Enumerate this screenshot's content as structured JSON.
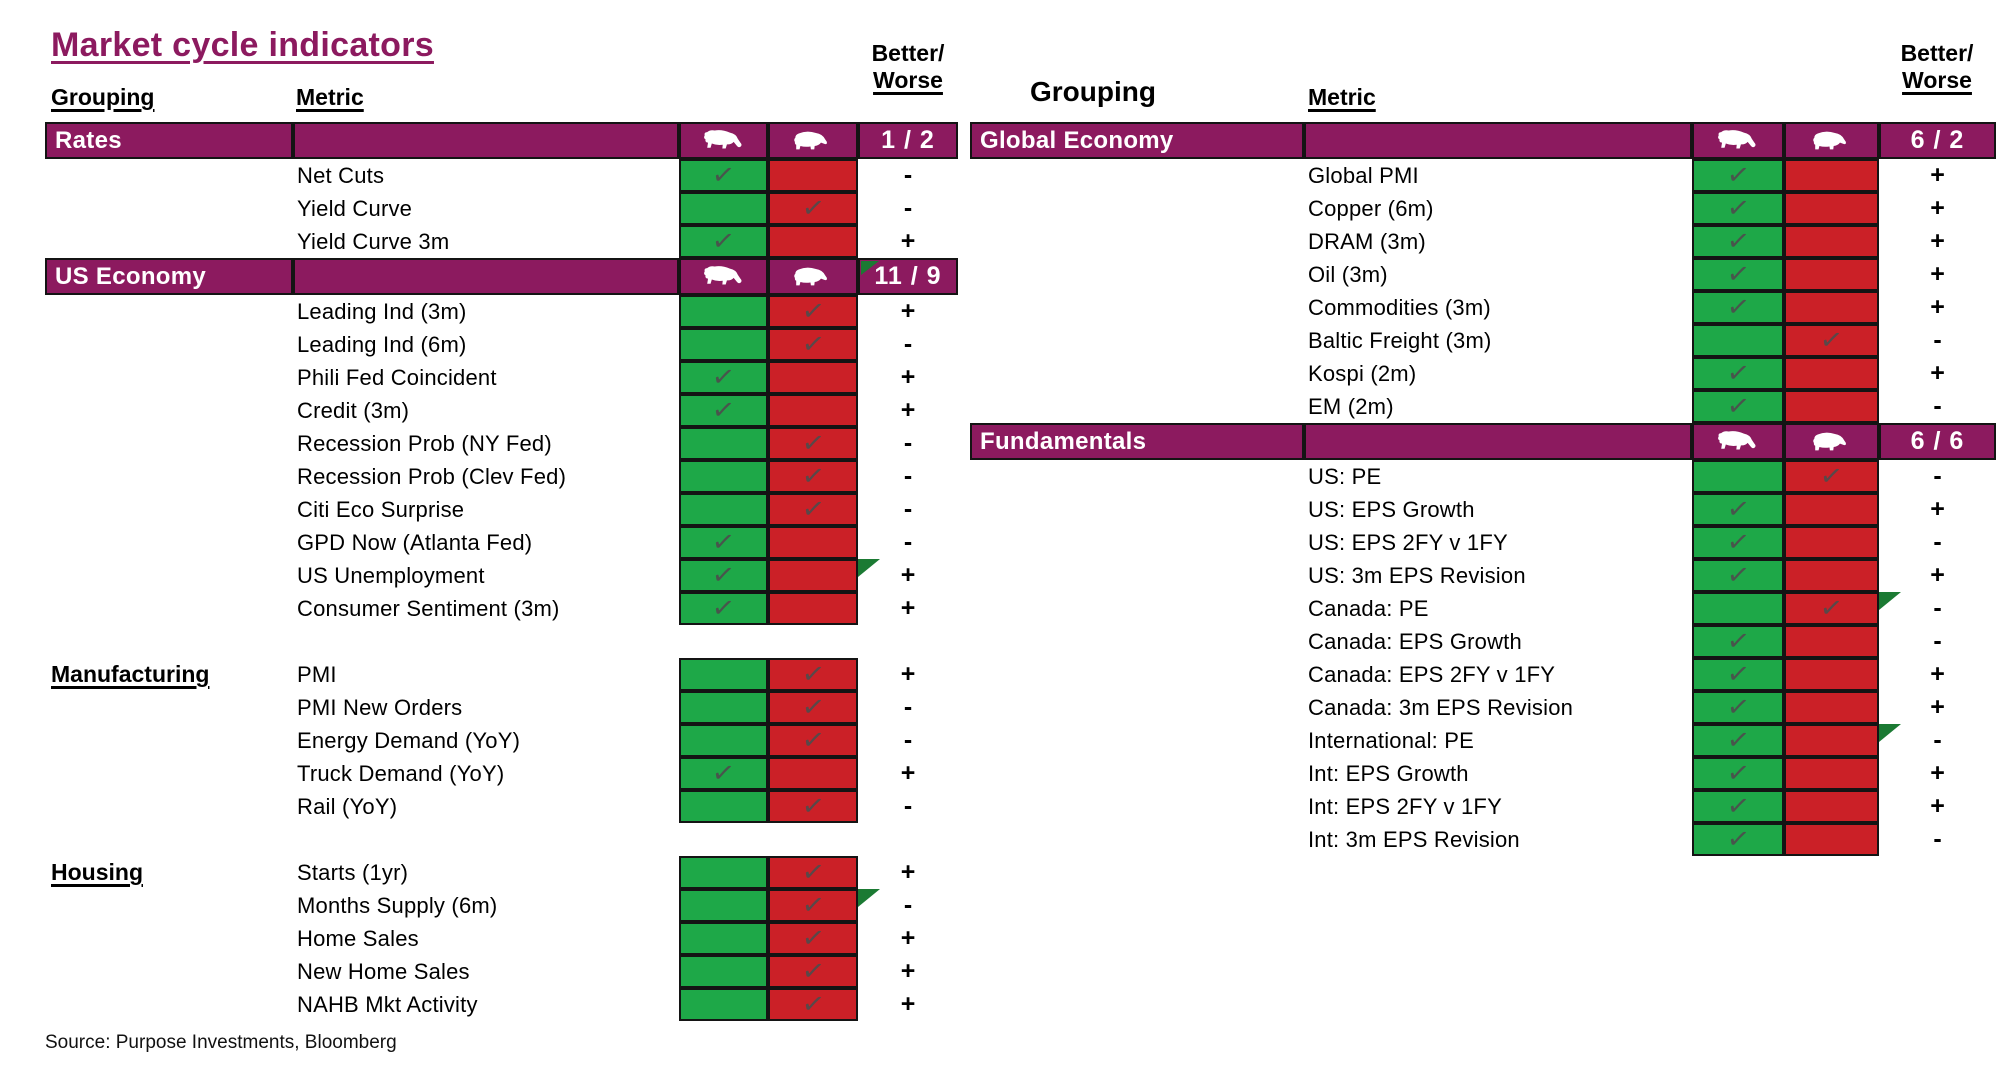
{
  "title": "Market cycle indicators",
  "headers": {
    "grouping": "Grouping",
    "metric": "Metric",
    "better": "Better/",
    "worse": "Worse"
  },
  "source": "Source: Purpose Investments, Bloomberg",
  "colors": {
    "banner_purple": "#8C1A5F",
    "bull_green": "#1EA848",
    "bear_red": "#CB2027",
    "flag_green": "#1B7A33",
    "check_gray": "#4D4D4D",
    "grid_black": "#141414"
  },
  "icons": {
    "bull": "bull-icon",
    "bear": "bear-icon",
    "check_glyph": "✓",
    "flag": "green-corner-flag"
  },
  "tables": {
    "left": {
      "sections": [
        {
          "label": "Rates",
          "style": "banner",
          "score": "1 / 2",
          "score_flag": false,
          "gap_before": false,
          "rows": [
            {
              "metric": "Net Cuts",
              "check": "bull",
              "better": "-",
              "flag": false
            },
            {
              "metric": "Yield Curve",
              "check": "bear",
              "better": "-",
              "flag": false
            },
            {
              "metric": "Yield Curve 3m",
              "check": "bull",
              "better": "+",
              "flag": false
            }
          ]
        },
        {
          "label": "US Economy",
          "style": "banner",
          "score": "11 / 9",
          "score_flag": true,
          "gap_before": false,
          "rows": [
            {
              "metric": "Leading Ind (3m)",
              "check": "bear",
              "better": "+",
              "flag": false
            },
            {
              "metric": "Leading Ind (6m)",
              "check": "bear",
              "better": "-",
              "flag": false
            },
            {
              "metric": "Phili Fed Coincident",
              "check": "bull",
              "better": "+",
              "flag": false
            },
            {
              "metric": "Credit (3m)",
              "check": "bull",
              "better": "+",
              "flag": false
            },
            {
              "metric": "Recession Prob (NY Fed)",
              "check": "bear",
              "better": "-",
              "flag": false
            },
            {
              "metric": "Recession Prob (Clev Fed)",
              "check": "bear",
              "better": "-",
              "flag": false
            },
            {
              "metric": "Citi Eco Surprise",
              "check": "bear",
              "better": "-",
              "flag": false
            },
            {
              "metric": "GPD Now (Atlanta Fed)",
              "check": "bull",
              "better": "-",
              "flag": false
            },
            {
              "metric": "US Unemployment",
              "check": "bull",
              "better": "+",
              "flag": true
            },
            {
              "metric": "Consumer Sentiment (3m)",
              "check": "bull",
              "better": "+",
              "flag": false
            }
          ]
        },
        {
          "label": "Manufacturing",
          "style": "plain",
          "score": "",
          "score_flag": false,
          "gap_before": true,
          "rows": [
            {
              "metric": "PMI",
              "check": "bear",
              "better": "+",
              "flag": false
            },
            {
              "metric": "PMI New Orders",
              "check": "bear",
              "better": "-",
              "flag": false
            },
            {
              "metric": "Energy Demand (YoY)",
              "check": "bear",
              "better": "-",
              "flag": false
            },
            {
              "metric": "Truck Demand (YoY)",
              "check": "bull",
              "better": "+",
              "flag": false
            },
            {
              "metric": "Rail (YoY)",
              "check": "bear",
              "better": "-",
              "flag": false
            }
          ]
        },
        {
          "label": "Housing",
          "style": "plain",
          "score": "",
          "score_flag": false,
          "gap_before": true,
          "rows": [
            {
              "metric": "Starts (1yr)",
              "check": "bear",
              "better": "+",
              "flag": false
            },
            {
              "metric": "Months Supply (6m)",
              "check": "bear",
              "better": "-",
              "flag": true
            },
            {
              "metric": "Home Sales",
              "check": "bear",
              "better": "+",
              "flag": false
            },
            {
              "metric": "New Home Sales",
              "check": "bear",
              "better": "+",
              "flag": false
            },
            {
              "metric": "NAHB Mkt Activity",
              "check": "bear",
              "better": "+",
              "flag": false
            }
          ]
        }
      ]
    },
    "right": {
      "sections": [
        {
          "label": "Global Economy",
          "style": "banner",
          "score": "6 / 2",
          "score_flag": false,
          "gap_before": false,
          "rows": [
            {
              "metric": "Global PMI",
              "check": "bull",
              "better": "+",
              "flag": false
            },
            {
              "metric": "Copper (6m)",
              "check": "bull",
              "better": "+",
              "flag": false
            },
            {
              "metric": "DRAM (3m)",
              "check": "bull",
              "better": "+",
              "flag": false
            },
            {
              "metric": "Oil (3m)",
              "check": "bull",
              "better": "+",
              "flag": false
            },
            {
              "metric": "Commodities (3m)",
              "check": "bull",
              "better": "+",
              "flag": false
            },
            {
              "metric": "Baltic Freight (3m)",
              "check": "bear",
              "better": "-",
              "flag": false
            },
            {
              "metric": "Kospi (2m)",
              "check": "bull",
              "better": "+",
              "flag": false
            },
            {
              "metric": "EM (2m)",
              "check": "bull",
              "better": "-",
              "flag": false
            }
          ]
        },
        {
          "label": "Fundamentals",
          "style": "banner",
          "score": "6 / 6",
          "score_flag": false,
          "gap_before": false,
          "rows": [
            {
              "metric": "US: PE",
              "check": "bear",
              "better": "-",
              "flag": false
            },
            {
              "metric": "US: EPS Growth",
              "check": "bull",
              "better": "+",
              "flag": false
            },
            {
              "metric": "US: EPS 2FY v 1FY",
              "check": "bull",
              "better": "-",
              "flag": false
            },
            {
              "metric": "US: 3m EPS Revision",
              "check": "bull",
              "better": "+",
              "flag": false
            },
            {
              "metric": "Canada: PE",
              "check": "bear",
              "better": "-",
              "flag": true
            },
            {
              "metric": "Canada: EPS Growth",
              "check": "bull",
              "better": "-",
              "flag": false
            },
            {
              "metric": "Canada: EPS 2FY v 1FY",
              "check": "bull",
              "better": "+",
              "flag": false
            },
            {
              "metric": "Canada: 3m EPS Revision",
              "check": "bull",
              "better": "+",
              "flag": false
            },
            {
              "metric": "International: PE",
              "check": "bull",
              "better": "-",
              "flag": true
            },
            {
              "metric": "Int: EPS Growth",
              "check": "bull",
              "better": "+",
              "flag": false
            },
            {
              "metric": "Int: EPS 2FY v 1FY",
              "check": "bull",
              "better": "+",
              "flag": false
            },
            {
              "metric": "Int: 3m EPS Revision",
              "check": "bull",
              "better": "-",
              "flag": false
            }
          ]
        }
      ]
    }
  },
  "chart_data": {
    "type": "table",
    "title": "Market cycle indicators",
    "columns": [
      "Grouping",
      "Metric",
      "Signal (bull/bear)",
      "Better/Worse"
    ],
    "sections": [
      {
        "group": "Rates",
        "score": "1 / 2",
        "rows": [
          [
            "Net Cuts",
            "bull",
            "-"
          ],
          [
            "Yield Curve",
            "bear",
            "-"
          ],
          [
            "Yield Curve 3m",
            "bull",
            "+"
          ]
        ]
      },
      {
        "group": "US Economy",
        "score": "11 / 9",
        "rows": [
          [
            "Leading Ind (3m)",
            "bear",
            "+"
          ],
          [
            "Leading Ind (6m)",
            "bear",
            "-"
          ],
          [
            "Phili Fed Coincident",
            "bull",
            "+"
          ],
          [
            "Credit (3m)",
            "bull",
            "+"
          ],
          [
            "Recession Prob (NY Fed)",
            "bear",
            "-"
          ],
          [
            "Recession Prob (Clev Fed)",
            "bear",
            "-"
          ],
          [
            "Citi Eco Surprise",
            "bear",
            "-"
          ],
          [
            "GPD Now (Atlanta Fed)",
            "bull",
            "-"
          ],
          [
            "US Unemployment",
            "bull",
            "+"
          ],
          [
            "Consumer Sentiment (3m)",
            "bull",
            "+"
          ]
        ]
      },
      {
        "group": "Manufacturing",
        "score": "",
        "rows": [
          [
            "PMI",
            "bear",
            "+"
          ],
          [
            "PMI New Orders",
            "bear",
            "-"
          ],
          [
            "Energy Demand (YoY)",
            "bear",
            "-"
          ],
          [
            "Truck Demand (YoY)",
            "bull",
            "+"
          ],
          [
            "Rail (YoY)",
            "bear",
            "-"
          ]
        ]
      },
      {
        "group": "Housing",
        "score": "",
        "rows": [
          [
            "Starts (1yr)",
            "bear",
            "+"
          ],
          [
            "Months Supply (6m)",
            "bear",
            "-"
          ],
          [
            "Home Sales",
            "bear",
            "+"
          ],
          [
            "New Home Sales",
            "bear",
            "+"
          ],
          [
            "NAHB Mkt Activity",
            "bear",
            "+"
          ]
        ]
      },
      {
        "group": "Global Economy",
        "score": "6 / 2",
        "rows": [
          [
            "Global PMI",
            "bull",
            "+"
          ],
          [
            "Copper (6m)",
            "bull",
            "+"
          ],
          [
            "DRAM (3m)",
            "bull",
            "+"
          ],
          [
            "Oil (3m)",
            "bull",
            "+"
          ],
          [
            "Commodities (3m)",
            "bull",
            "+"
          ],
          [
            "Baltic Freight (3m)",
            "bear",
            "-"
          ],
          [
            "Kospi (2m)",
            "bull",
            "+"
          ],
          [
            "EM (2m)",
            "bull",
            "-"
          ]
        ]
      },
      {
        "group": "Fundamentals",
        "score": "6 / 6",
        "rows": [
          [
            "US: PE",
            "bear",
            "-"
          ],
          [
            "US: EPS Growth",
            "bull",
            "+"
          ],
          [
            "US: EPS 2FY v 1FY",
            "bull",
            "-"
          ],
          [
            "US: 3m EPS Revision",
            "bull",
            "+"
          ],
          [
            "Canada: PE",
            "bear",
            "-"
          ],
          [
            "Canada: EPS Growth",
            "bull",
            "-"
          ],
          [
            "Canada: EPS 2FY v 1FY",
            "bull",
            "+"
          ],
          [
            "Canada: 3m EPS Revision",
            "bull",
            "+"
          ],
          [
            "International: PE",
            "bull",
            "-"
          ],
          [
            "Int: EPS Growth",
            "bull",
            "+"
          ],
          [
            "Int: EPS 2FY v 1FY",
            "bull",
            "+"
          ],
          [
            "Int: 3m EPS Revision",
            "bull",
            "-"
          ]
        ]
      }
    ]
  }
}
